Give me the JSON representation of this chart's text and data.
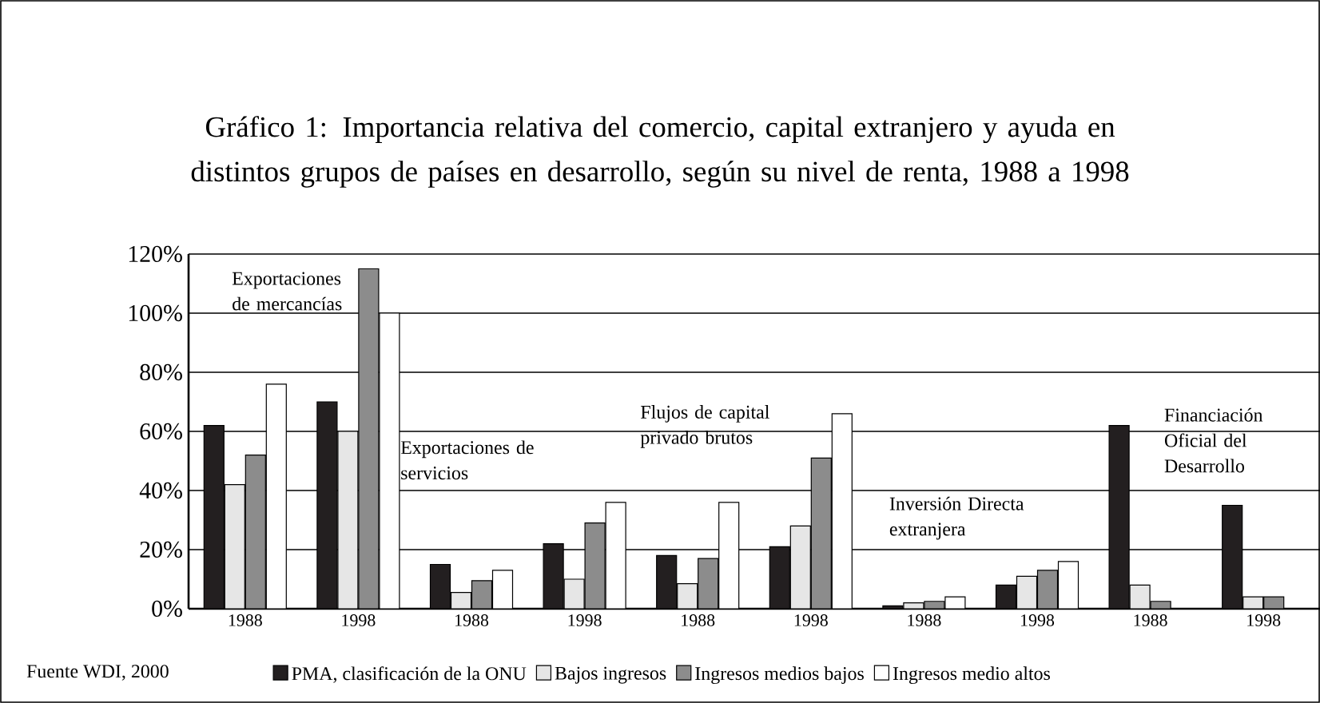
{
  "chart_data": {
    "type": "bar",
    "title": "Gráfico 1: Importancia relativa del comercio, capital extranjero y ayuda en distintos grupos de países en desarrollo, según su nivel de renta, 1988 a 1998",
    "categories": [
      "1988",
      "1998",
      "1988",
      "1998",
      "1988",
      "1998",
      "1988",
      "1998",
      "1988",
      "1998"
    ],
    "series": [
      {
        "name": "PMA, clasificación de la ONU",
        "color": "#231f20",
        "values": [
          62,
          70,
          15,
          22,
          18,
          21,
          1,
          8,
          62,
          35
        ]
      },
      {
        "name": "Bajos ingresos",
        "color": "#e6e6e6",
        "values": [
          42,
          60,
          5.5,
          10,
          8.5,
          28,
          2,
          11,
          8,
          4
        ]
      },
      {
        "name": "Ingresos medios bajos",
        "color": "#8c8c8c",
        "values": [
          52,
          115,
          9.5,
          29,
          17,
          51,
          2.5,
          13,
          2.5,
          4
        ]
      },
      {
        "name": "Ingresos medio altos",
        "color": "#ffffff",
        "values": [
          76,
          100,
          13,
          36,
          36,
          66,
          4,
          16,
          null,
          null
        ]
      }
    ],
    "ylim": [
      0,
      120
    ],
    "yticks": [
      {
        "value": 0,
        "label": "0%"
      },
      {
        "value": 20,
        "label": "20%"
      },
      {
        "value": 40,
        "label": "40%"
      },
      {
        "value": 60,
        "label": "60%"
      },
      {
        "value": 80,
        "label": "80%"
      },
      {
        "value": 100,
        "label": "100%"
      },
      {
        "value": 120,
        "label": "120%"
      }
    ],
    "grid": "y",
    "legend": "bottom",
    "annotations": [
      "Exportaciones de mercancías",
      "Exportaciones de servicios",
      "Flujos de capital privado brutos",
      "Inversión Directa extranjera",
      "Financiación Oficial del Desarrollo",
      "Fuente WDI, 2000"
    ]
  }
}
